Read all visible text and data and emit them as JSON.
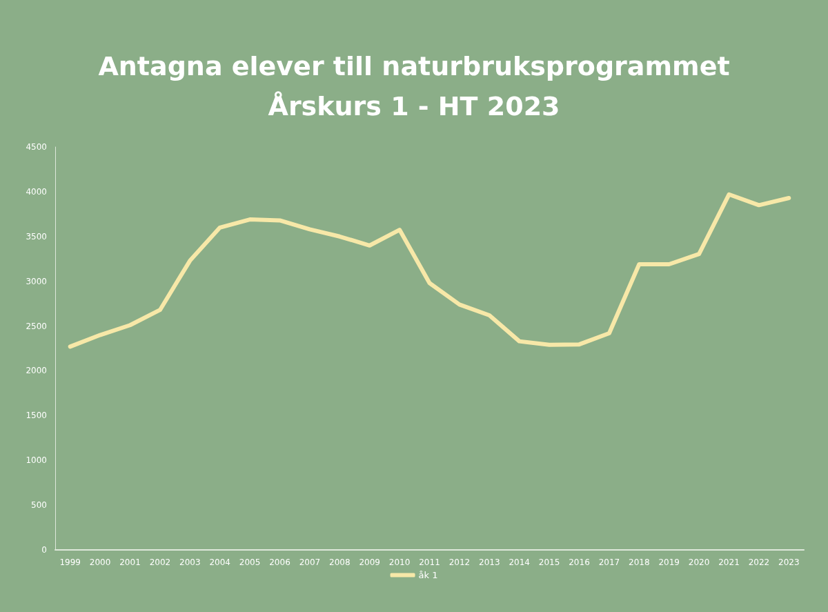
{
  "chart_data": {
    "type": "line",
    "title": "Antagna elever till naturbruksprogrammet\nÅrskurs 1 - HT 2023",
    "categories": [
      "1999",
      "2000",
      "2001",
      "2002",
      "2003",
      "2004",
      "2005",
      "2006",
      "2007",
      "2008",
      "2009",
      "2010",
      "2011",
      "2012",
      "2013",
      "2014",
      "2015",
      "2016",
      "2017",
      "2018",
      "2019",
      "2020",
      "2021",
      "2022",
      "2023"
    ],
    "series": [
      {
        "name": "åk 1",
        "color": "#f7e8a8",
        "values": [
          2270,
          2400,
          2510,
          2680,
          3230,
          3600,
          3690,
          3680,
          3580,
          3500,
          3400,
          3575,
          2980,
          2740,
          2620,
          2330,
          2290,
          2295,
          2420,
          3190,
          3190,
          3305,
          3970,
          3850,
          3930
        ]
      }
    ],
    "ylim": [
      0,
      4500
    ],
    "yticks": [
      0,
      500,
      1000,
      1500,
      2000,
      2500,
      3000,
      3500,
      4000,
      4500
    ],
    "grid": false,
    "legend": "bottom",
    "marker": "none",
    "line_style": "solid"
  }
}
